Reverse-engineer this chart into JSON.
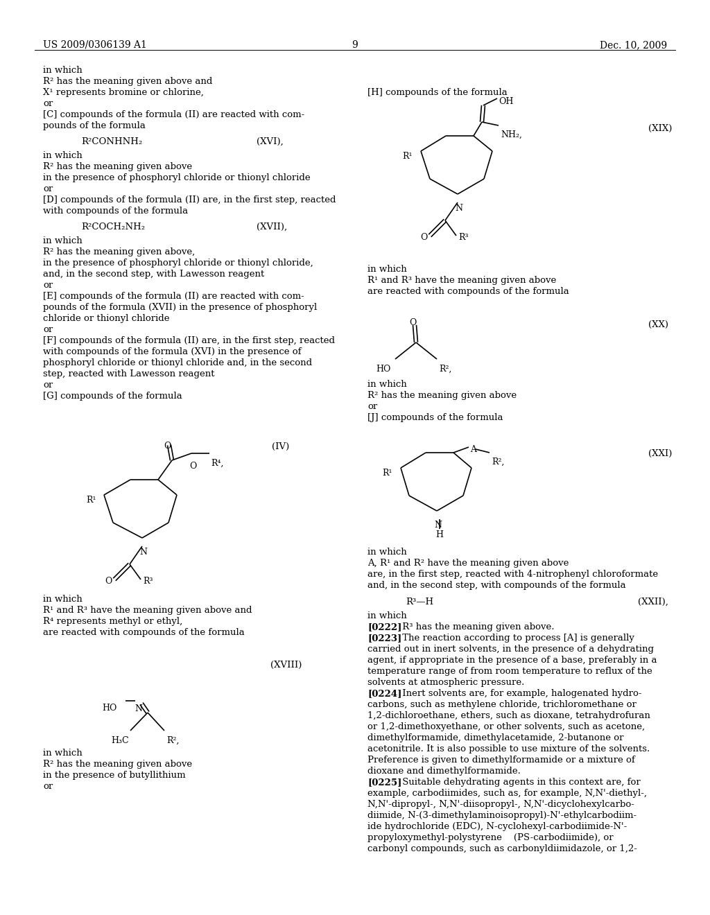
{
  "bg_color": "#ffffff",
  "header_left": "US 2009/0306139 A1",
  "header_center": "9",
  "header_right": "Dec. 10, 2009"
}
